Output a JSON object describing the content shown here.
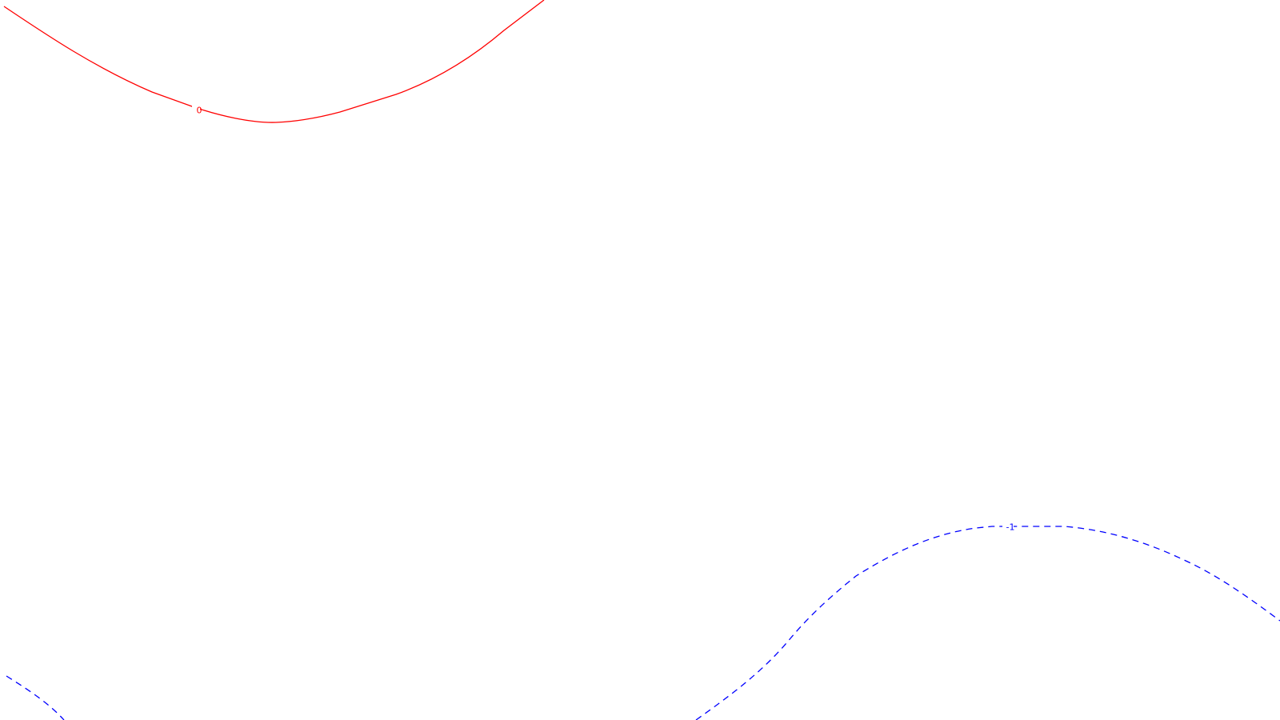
{
  "chart_data": {
    "type": "contour",
    "title": "",
    "xlabel": "",
    "ylabel": "",
    "grid": false,
    "legend": "none",
    "series": [
      {
        "level_label": "0",
        "color": "#ff0000",
        "dash": "solid"
      },
      {
        "level_label": "-1",
        "color": "#0000ff",
        "dash": "dashed"
      },
      {
        "level_label": "",
        "color": "#0000ff",
        "dash": "dashed"
      }
    ]
  }
}
